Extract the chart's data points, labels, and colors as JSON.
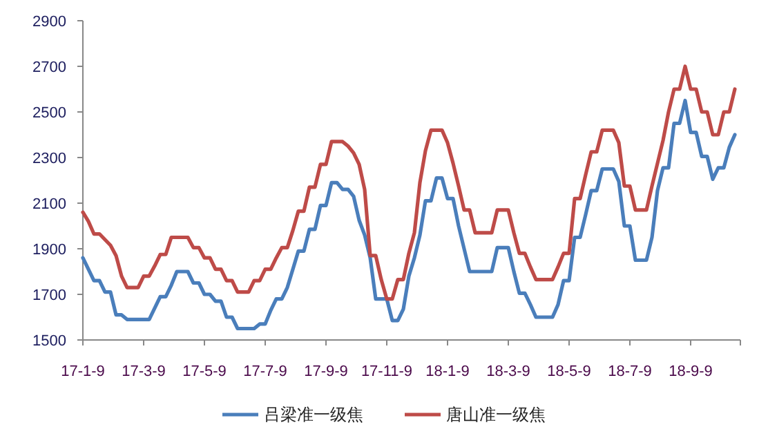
{
  "chart_data": {
    "type": "line",
    "categories": [
      "17-1-9",
      null,
      null,
      null,
      null,
      null,
      null,
      null,
      null,
      null,
      null,
      "17-3-9",
      null,
      null,
      null,
      null,
      null,
      null,
      null,
      null,
      null,
      null,
      "17-5-9",
      null,
      null,
      null,
      null,
      null,
      null,
      null,
      null,
      null,
      null,
      "17-7-9",
      null,
      null,
      null,
      null,
      null,
      null,
      null,
      null,
      null,
      null,
      "17-9-9",
      null,
      null,
      null,
      null,
      null,
      null,
      null,
      null,
      null,
      null,
      "17-11-9",
      null,
      null,
      null,
      null,
      null,
      null,
      null,
      null,
      null,
      null,
      "18-1-9",
      null,
      null,
      null,
      null,
      null,
      null,
      null,
      null,
      null,
      null,
      "18-3-9",
      null,
      null,
      null,
      null,
      null,
      null,
      null,
      null,
      null,
      null,
      "18-5-9",
      null,
      null,
      null,
      null,
      null,
      null,
      null,
      null,
      null,
      null,
      "18-7-9",
      null,
      null,
      null,
      null,
      null,
      null,
      null,
      null,
      null,
      null,
      "18-9-9",
      null,
      null,
      null,
      null,
      null,
      null,
      null,
      null
    ],
    "series": [
      {
        "name": "吕梁准一级焦",
        "color": "#4a7ebb",
        "values": [
          1860,
          1810,
          1760,
          1760,
          1710,
          1710,
          1610,
          1610,
          1590,
          1590,
          1590,
          1590,
          1590,
          1640,
          1690,
          1690,
          1740,
          1800,
          1800,
          1800,
          1750,
          1750,
          1700,
          1700,
          1670,
          1670,
          1600,
          1600,
          1550,
          1550,
          1550,
          1550,
          1570,
          1570,
          1630,
          1680,
          1680,
          1730,
          1810,
          1890,
          1890,
          1985,
          1985,
          2090,
          2090,
          2190,
          2190,
          2160,
          2160,
          2130,
          2025,
          1960,
          1860,
          1680,
          1680,
          1680,
          1585,
          1585,
          1635,
          1780,
          1860,
          1960,
          2110,
          2110,
          2210,
          2210,
          2120,
          2120,
          2000,
          1900,
          1800,
          1800,
          1800,
          1800,
          1800,
          1905,
          1905,
          1905,
          1800,
          1705,
          1705,
          1655,
          1600,
          1600,
          1600,
          1600,
          1655,
          1760,
          1760,
          1950,
          1950,
          2050,
          2155,
          2155,
          2250,
          2250,
          2250,
          2195,
          2000,
          2000,
          1850,
          1850,
          1850,
          1950,
          2155,
          2255,
          2255,
          2450,
          2450,
          2550,
          2410,
          2410,
          2305,
          2305,
          2205,
          2255,
          2255,
          2345,
          2400
        ]
      },
      {
        "name": "唐山准一级焦",
        "color": "#be4b48",
        "values": [
          2060,
          2020,
          1965,
          1965,
          1940,
          1915,
          1870,
          1780,
          1730,
          1730,
          1730,
          1780,
          1780,
          1825,
          1875,
          1875,
          1950,
          1950,
          1950,
          1950,
          1905,
          1905,
          1860,
          1860,
          1810,
          1810,
          1760,
          1760,
          1710,
          1710,
          1710,
          1760,
          1760,
          1810,
          1810,
          1860,
          1905,
          1905,
          1980,
          2065,
          2065,
          2170,
          2170,
          2270,
          2270,
          2370,
          2370,
          2370,
          2350,
          2320,
          2270,
          2160,
          1870,
          1870,
          1765,
          1680,
          1680,
          1765,
          1765,
          1880,
          1970,
          2190,
          2330,
          2420,
          2420,
          2420,
          2365,
          2275,
          2175,
          2070,
          2070,
          1970,
          1970,
          1970,
          1970,
          2070,
          2070,
          2070,
          1970,
          1880,
          1880,
          1820,
          1765,
          1765,
          1765,
          1765,
          1820,
          1880,
          1880,
          2120,
          2120,
          2225,
          2325,
          2325,
          2420,
          2420,
          2420,
          2365,
          2175,
          2175,
          2070,
          2070,
          2070,
          2175,
          2275,
          2375,
          2500,
          2600,
          2600,
          2700,
          2600,
          2600,
          2500,
          2500,
          2400,
          2400,
          2500,
          2500,
          2600
        ]
      }
    ],
    "ylim": [
      1500,
      2900
    ],
    "yticks": [
      1500,
      1700,
      1900,
      2100,
      2300,
      2500,
      2700,
      2900
    ],
    "legend": "bottom"
  }
}
